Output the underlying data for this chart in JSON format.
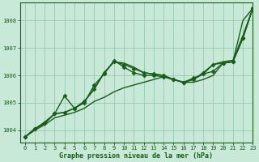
{
  "xlabel": "Graphe pression niveau de la mer (hPa)",
  "background_color": "#c8e8d8",
  "grid_color": "#98c8b0",
  "line_color": "#1a5c1a",
  "ylim": [
    1003.55,
    1008.65
  ],
  "xlim": [
    -0.5,
    23
  ],
  "yticks": [
    1004,
    1005,
    1006,
    1007,
    1008
  ],
  "xticks": [
    0,
    1,
    2,
    3,
    4,
    5,
    6,
    7,
    8,
    9,
    10,
    11,
    12,
    13,
    14,
    15,
    16,
    17,
    18,
    19,
    20,
    21,
    22,
    23
  ],
  "series": [
    {
      "y": [
        1003.75,
        1004.0,
        1004.2,
        1004.45,
        1004.55,
        1004.65,
        1004.8,
        1005.05,
        1005.2,
        1005.4,
        1005.55,
        1005.65,
        1005.75,
        1005.85,
        1005.95,
        1005.85,
        1005.75,
        1005.75,
        1005.85,
        1006.0,
        1006.45,
        1006.5,
        1008.0,
        1008.45
      ],
      "marker": false,
      "linewidth": 1.0
    },
    {
      "y": [
        1003.75,
        1004.05,
        1004.25,
        1004.6,
        1004.65,
        1004.8,
        1005.05,
        1005.5,
        1006.1,
        1006.5,
        1006.4,
        1006.25,
        1006.1,
        1006.05,
        1006.0,
        1005.85,
        1005.75,
        1005.9,
        1006.05,
        1006.15,
        1006.45,
        1006.5,
        1007.35,
        1008.45
      ],
      "marker": true,
      "linewidth": 1.0
    },
    {
      "y": [
        1003.75,
        1004.05,
        1004.25,
        1004.6,
        1005.25,
        1004.8,
        1005.0,
        1005.65,
        1006.05,
        1006.55,
        1006.3,
        1006.1,
        1006.0,
        1006.0,
        1005.95,
        1005.85,
        1005.75,
        1005.85,
        1006.1,
        1006.4,
        1006.45,
        1006.5,
        1007.35,
        1008.45
      ],
      "marker": true,
      "linewidth": 1.0
    },
    {
      "y": [
        1003.75,
        1004.05,
        1004.3,
        1004.6,
        1004.65,
        1004.8,
        1005.05,
        1005.5,
        1006.1,
        1006.5,
        1006.45,
        1006.3,
        1006.1,
        1006.05,
        1006.0,
        1005.85,
        1005.75,
        1005.85,
        1006.05,
        1006.4,
        1006.5,
        1006.55,
        1007.45,
        1008.45
      ],
      "marker": false,
      "linewidth": 1.0
    }
  ]
}
